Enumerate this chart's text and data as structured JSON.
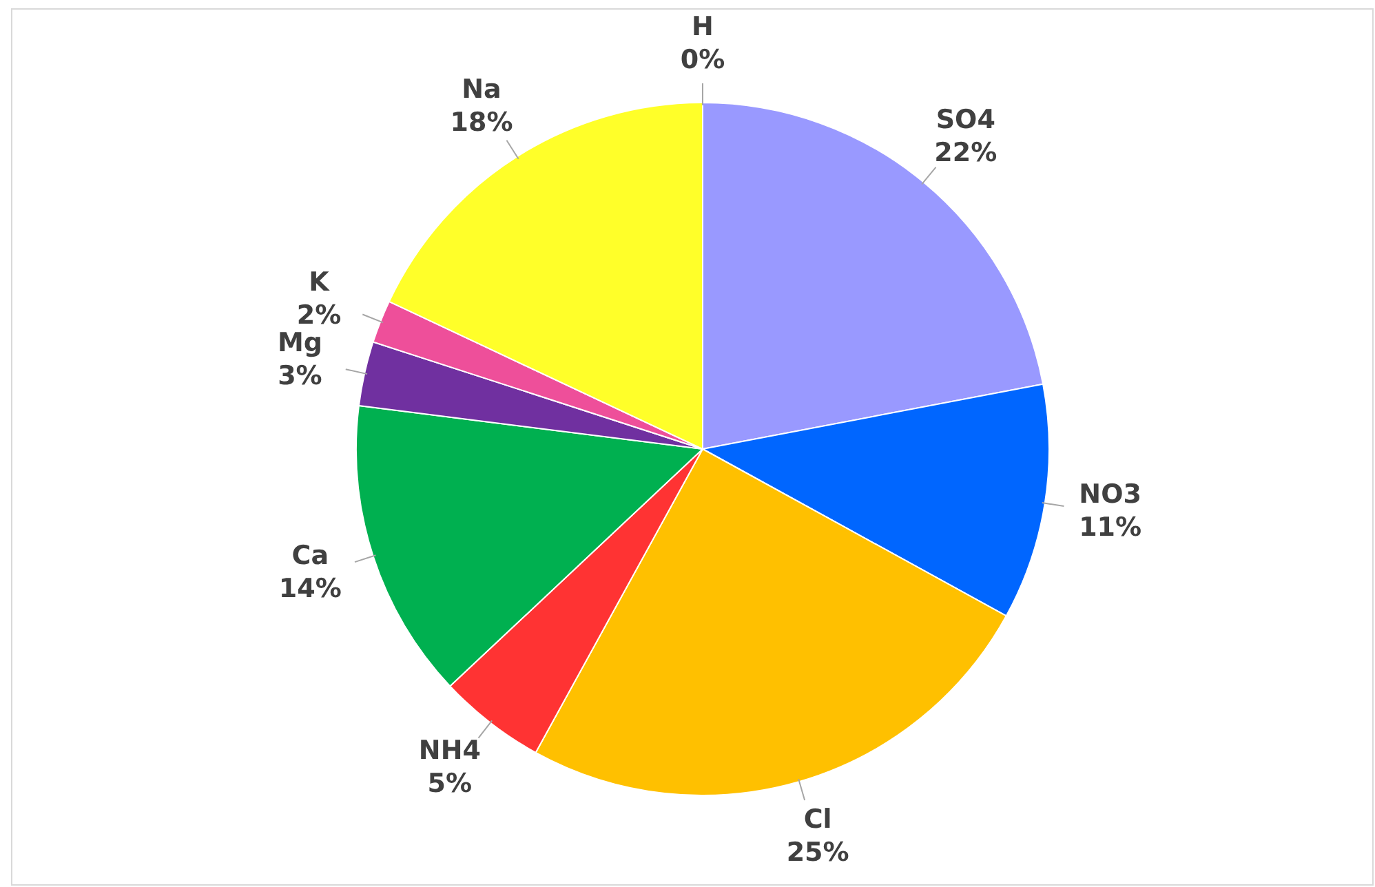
{
  "chart_data": {
    "type": "pie",
    "categories": [
      "H",
      "SO4",
      "NO3",
      "Cl",
      "NH4",
      "Ca",
      "Mg",
      "K",
      "Na"
    ],
    "values": [
      0,
      22,
      11,
      25,
      5,
      14,
      3,
      2,
      18
    ],
    "colors": [
      "#c55a11",
      "#9999ff",
      "#0066ff",
      "#ffc000",
      "#ff3333",
      "#00b050",
      "#7030a0",
      "#ee4f9a",
      "#ffff29"
    ],
    "value_labels": [
      "0%",
      "22%",
      "11%",
      "25%",
      "5%",
      "14%",
      "3%",
      "2%",
      "18%"
    ],
    "legend": false
  }
}
